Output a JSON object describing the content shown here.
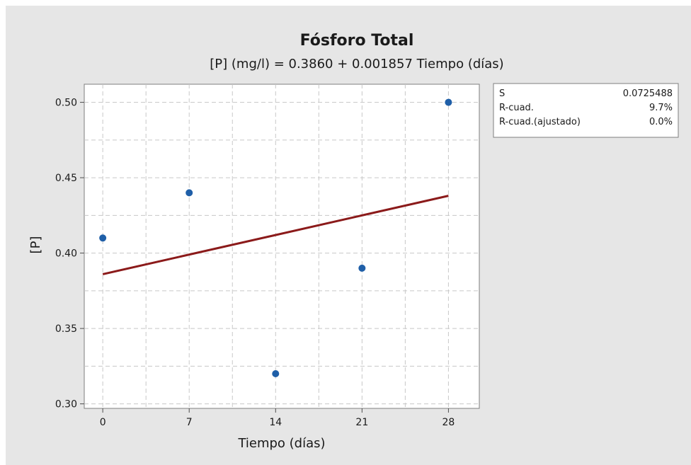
{
  "chart_data": {
    "type": "scatter",
    "title": "Fósforo Total",
    "subtitle": "[P] (mg/l) = 0.3860 + 0.001857 Tiempo (días)",
    "xlabel": "Tiempo (días)",
    "ylabel": "[P]",
    "x_ticks": [
      0,
      7,
      14,
      21,
      28
    ],
    "y_ticks": [
      0.3,
      0.35,
      0.4,
      0.45,
      0.5
    ],
    "xlim": [
      -1.5,
      30.5
    ],
    "ylim": [
      0.297,
      0.512
    ],
    "grid": true,
    "points": [
      {
        "x": 0,
        "y": 0.41
      },
      {
        "x": 7,
        "y": 0.44
      },
      {
        "x": 14,
        "y": 0.32
      },
      {
        "x": 21,
        "y": 0.39
      },
      {
        "x": 28,
        "y": 0.5
      }
    ],
    "fit": {
      "intercept": 0.386,
      "slope": 0.001857,
      "x_range": [
        0,
        28
      ]
    },
    "colors": {
      "points": "#1f5fa8",
      "fit_line": "#8b1a1a",
      "grid": "#c8c8c8",
      "background": "#e6e6e6",
      "plot_area": "#ffffff"
    },
    "stats": [
      {
        "label": "S",
        "value": "0.0725488"
      },
      {
        "label": "R-cuad.",
        "value": "9.7%"
      },
      {
        "label": "R-cuad.(ajustado)",
        "value": "0.0%"
      }
    ]
  }
}
